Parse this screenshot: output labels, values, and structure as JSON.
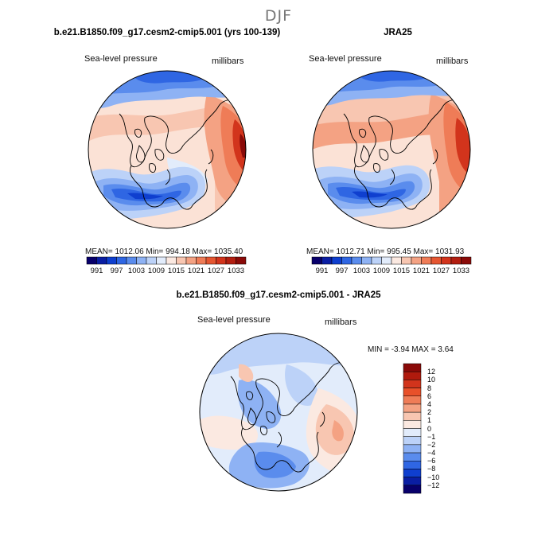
{
  "figure": {
    "season": "DJF",
    "left_panel": {
      "title": "b.e21.B1850.f09_g17.cesm2-cmip5.001 (yrs 100-139)",
      "variable": "Sea-level pressure",
      "units": "millibars",
      "stats": "MEAN= 1012.06   Min= 994.18   Max= 1035.40"
    },
    "right_panel": {
      "title": "JRA25",
      "variable": "Sea-level pressure",
      "units": "millibars",
      "stats": "MEAN= 1012.71   Min= 995.45   Max= 1031.93"
    },
    "diff_panel": {
      "title": "b.e21.B1850.f09_g17.cesm2-cmip5.001 - JRA25",
      "variable": "Sea-level pressure",
      "units": "millibars",
      "minmax": "MIN =  -3.94 MAX =   3.64"
    },
    "top_colorbar": {
      "labels": [
        "991",
        "997",
        "1003",
        "1009",
        "1015",
        "1021",
        "1027",
        "1033"
      ],
      "colors": [
        "#08006b",
        "#0a1ea3",
        "#0f3fcf",
        "#2f66e3",
        "#5a8ced",
        "#8eb2f4",
        "#bcd2f8",
        "#e2ecfb",
        "#fbe9e1",
        "#f8c6b1",
        "#f4a283",
        "#ef7c57",
        "#e55631",
        "#d2341c",
        "#b21e10",
        "#8a0a08"
      ]
    },
    "diff_colorbar": {
      "labels": [
        "12",
        "10",
        "8",
        "6",
        "4",
        "2",
        "1",
        "0",
        "−1",
        "−2",
        "−4",
        "−6",
        "−8",
        "−10",
        "−12"
      ],
      "colors": [
        "#8a0a08",
        "#b01a0d",
        "#d2341c",
        "#e8502a",
        "#ef7c57",
        "#f4a283",
        "#f8c6b1",
        "#fbe9e1",
        "#e2ecfb",
        "#bcd2f8",
        "#8eb2f4",
        "#5a8ced",
        "#2f66e3",
        "#0f3fcf",
        "#0a1ea3",
        "#08006b"
      ]
    }
  }
}
